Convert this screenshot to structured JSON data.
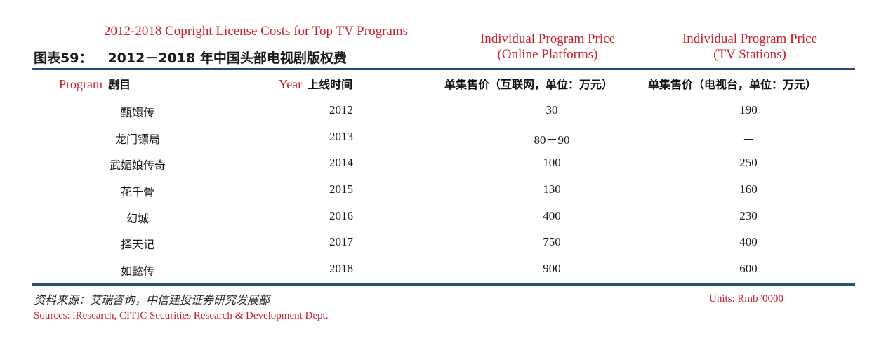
{
  "title_en": "2012-2018 Copright License Costs for Top TV Programs",
  "title_cn_label": "图表59：",
  "title_cn": "2012－2018 年中国头部电视剧版权费",
  "header_en": {
    "online_line1": "Individual Program Price",
    "online_line2": "(Online Platforms)",
    "tv_line1": "Individual Program Price",
    "tv_line2": "(TV Stations)"
  },
  "columns": {
    "program_en": "Program",
    "program_cn": "剧目",
    "year_en": "Year",
    "year_cn": "上线时间",
    "online_cn": "单集售价（互联网，单位：万元）",
    "tv_cn": "单集售价（电视台，单位：万元）"
  },
  "rows": [
    {
      "program": "甄嬛传",
      "year": "2012",
      "online": "30",
      "tv": "190"
    },
    {
      "program": "龙门镖局",
      "year": "2013",
      "online": "80－90",
      "tv": "－"
    },
    {
      "program": "武媚娘传奇",
      "year": "2014",
      "online": "100",
      "tv": "250"
    },
    {
      "program": "花千骨",
      "year": "2015",
      "online": "130",
      "tv": "160"
    },
    {
      "program": "幻城",
      "year": "2016",
      "online": "400",
      "tv": "230"
    },
    {
      "program": "择天记",
      "year": "2017",
      "online": "750",
      "tv": "400"
    },
    {
      "program": "如懿传",
      "year": "2018",
      "online": "900",
      "tv": "600"
    }
  ],
  "source_cn": "资料来源：艾瑞咨询，中信建投证券研究发展部",
  "source_en": "Sources: iResearch, CITIC Securities Research & Development Dept.",
  "units": "Units:  Rmb '0000",
  "colors": {
    "accent_red": "#c8202a",
    "rule_blue": "#2c4f6f"
  }
}
